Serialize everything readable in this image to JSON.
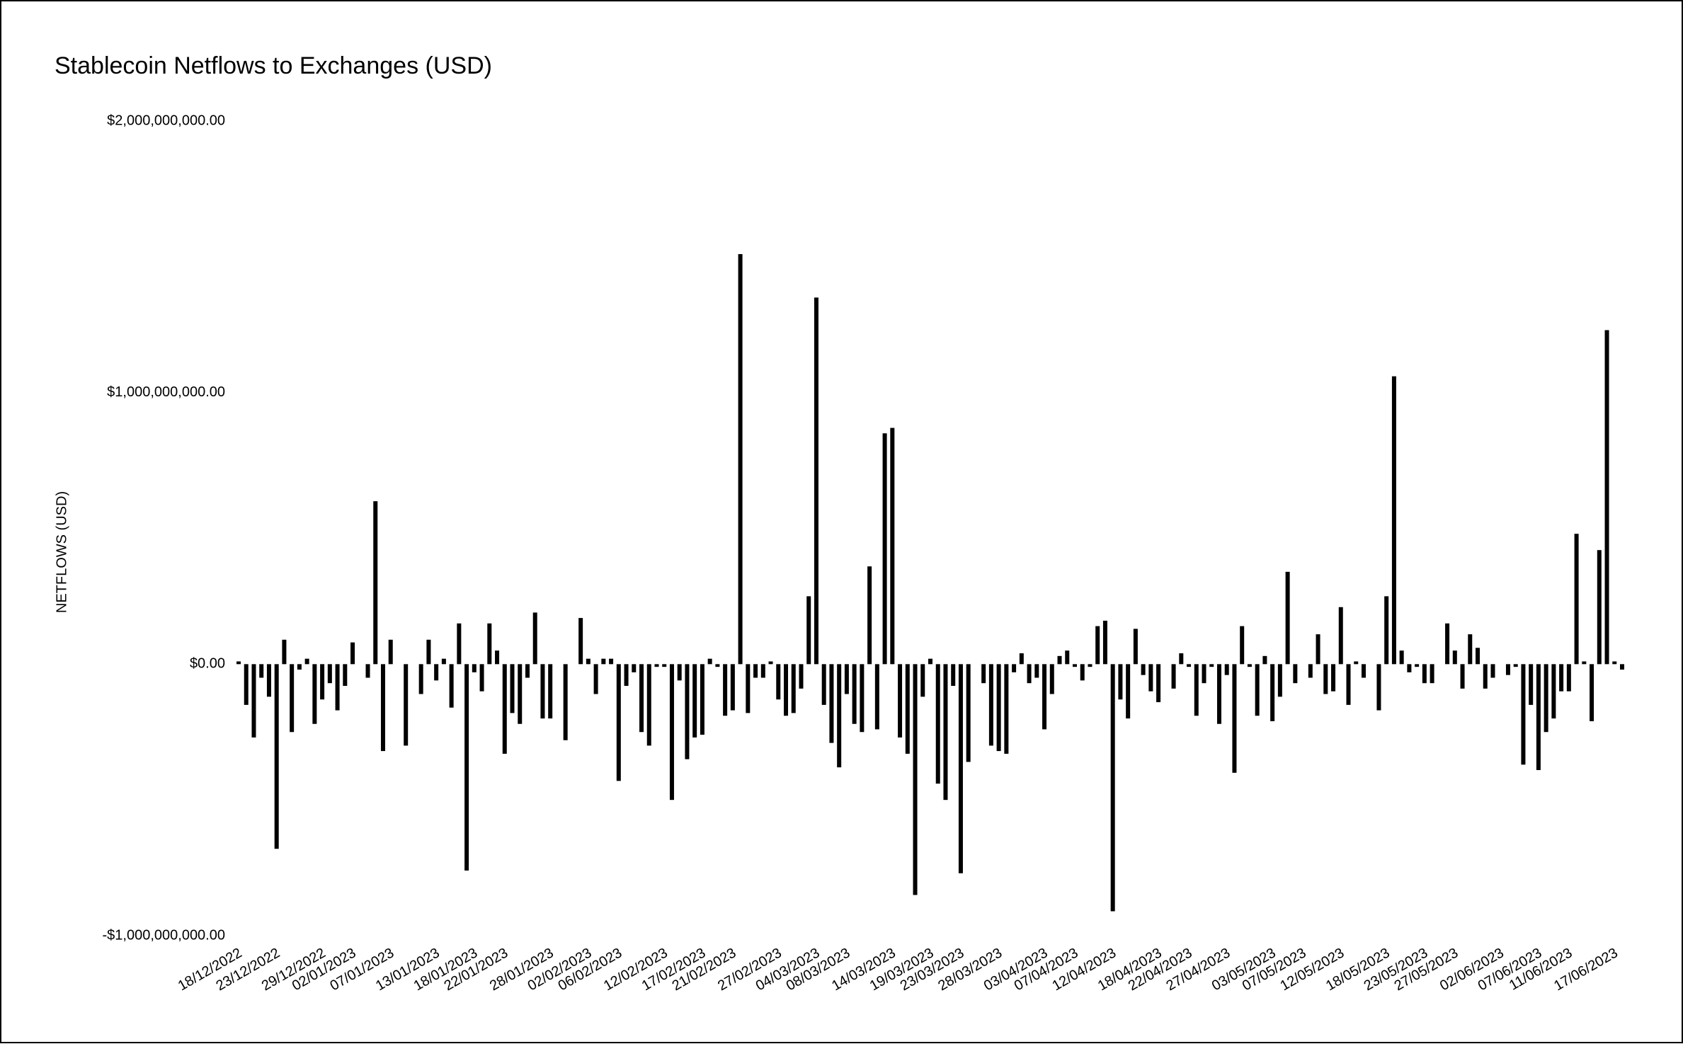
{
  "chart_data": {
    "type": "bar",
    "title": "Stablecoin Netflows to Exchanges (USD)",
    "y_label": "NETFLOWS (USD)",
    "color": "#000000",
    "ylim": [
      -1000000000,
      2000000000
    ],
    "yticks": [
      {
        "value": -1000000000,
        "label": "-$1,000,000,000.00"
      },
      {
        "value": 0,
        "label": "$0.00"
      },
      {
        "value": 1000000000,
        "label": "$1,000,000,000.00"
      },
      {
        "value": 2000000000,
        "label": "$2,000,000,000.00"
      }
    ],
    "categories": [
      "18/12/2022",
      null,
      null,
      null,
      null,
      "23/12/2022",
      null,
      null,
      null,
      null,
      null,
      "29/12/2022",
      null,
      null,
      null,
      "02/01/2023",
      null,
      null,
      null,
      null,
      "07/01/2023",
      null,
      null,
      null,
      null,
      null,
      "13/01/2023",
      null,
      null,
      null,
      null,
      "18/01/2023",
      null,
      null,
      null,
      "22/01/2023",
      null,
      null,
      null,
      null,
      null,
      "28/01/2023",
      null,
      null,
      null,
      null,
      "02/02/2023",
      null,
      null,
      null,
      "06/02/2023",
      null,
      null,
      null,
      null,
      null,
      "12/02/2023",
      null,
      null,
      null,
      null,
      "17/02/2023",
      null,
      null,
      null,
      "21/02/2023",
      null,
      null,
      null,
      null,
      null,
      "27/02/2023",
      null,
      null,
      null,
      null,
      "04/03/2023",
      null,
      null,
      null,
      "08/03/2023",
      null,
      null,
      null,
      null,
      null,
      "14/03/2023",
      null,
      null,
      null,
      null,
      "19/03/2023",
      null,
      null,
      null,
      "23/03/2023",
      null,
      null,
      null,
      null,
      "28/03/2023",
      null,
      null,
      null,
      null,
      null,
      "03/04/2023",
      null,
      null,
      null,
      "07/04/2023",
      null,
      null,
      null,
      null,
      "12/04/2023",
      null,
      null,
      null,
      null,
      null,
      "18/04/2023",
      null,
      null,
      null,
      "22/04/2023",
      null,
      null,
      null,
      null,
      "27/04/2023",
      null,
      null,
      null,
      null,
      null,
      "03/05/2023",
      null,
      null,
      null,
      "07/05/2023",
      null,
      null,
      null,
      null,
      "12/05/2023",
      null,
      null,
      null,
      null,
      null,
      "18/05/2023",
      null,
      null,
      null,
      null,
      "23/05/2023",
      null,
      null,
      null,
      "27/05/2023",
      null,
      null,
      null,
      null,
      null,
      "02/06/2023",
      null,
      null,
      null,
      null,
      "07/06/2023",
      null,
      null,
      null,
      "11/06/2023",
      null,
      null,
      null,
      null,
      null,
      "17/06/2023",
      null
    ],
    "values": [
      10000000,
      -150000000,
      -270000000,
      -50000000,
      -120000000,
      -680000000,
      90000000,
      -250000000,
      -20000000,
      20000000,
      -220000000,
      -130000000,
      -70000000,
      -170000000,
      -80000000,
      80000000,
      0,
      -50000000,
      600000000,
      -320000000,
      90000000,
      0,
      -300000000,
      0,
      -110000000,
      90000000,
      -60000000,
      20000000,
      -160000000,
      150000000,
      -760000000,
      -30000000,
      -100000000,
      150000000,
      50000000,
      -330000000,
      -180000000,
      -220000000,
      -50000000,
      190000000,
      -200000000,
      -200000000,
      0,
      -280000000,
      0,
      170000000,
      20000000,
      -110000000,
      20000000,
      20000000,
      -430000000,
      -80000000,
      -30000000,
      -250000000,
      -300000000,
      -10000000,
      -10000000,
      -500000000,
      -60000000,
      -350000000,
      -270000000,
      -260000000,
      20000000,
      -10000000,
      -190000000,
      -170000000,
      1510000000,
      -180000000,
      -50000000,
      -50000000,
      10000000,
      -130000000,
      -190000000,
      -180000000,
      -90000000,
      250000000,
      1350000000,
      -150000000,
      -290000000,
      -380000000,
      -110000000,
      -220000000,
      -250000000,
      360000000,
      -240000000,
      850000000,
      870000000,
      -270000000,
      -330000000,
      -850000000,
      -120000000,
      20000000,
      -440000000,
      -500000000,
      -80000000,
      -770000000,
      -360000000,
      0,
      -70000000,
      -300000000,
      -320000000,
      -330000000,
      -30000000,
      40000000,
      -70000000,
      -50000000,
      -240000000,
      -110000000,
      30000000,
      50000000,
      -10000000,
      -60000000,
      -10000000,
      140000000,
      160000000,
      -910000000,
      -130000000,
      -200000000,
      130000000,
      -40000000,
      -100000000,
      -140000000,
      0,
      -90000000,
      40000000,
      -10000000,
      -190000000,
      -70000000,
      -10000000,
      -220000000,
      -40000000,
      -400000000,
      140000000,
      -10000000,
      -190000000,
      30000000,
      -210000000,
      -120000000,
      340000000,
      -70000000,
      0,
      -50000000,
      110000000,
      -110000000,
      -100000000,
      210000000,
      -150000000,
      10000000,
      -50000000,
      0,
      -170000000,
      250000000,
      1060000000,
      50000000,
      -30000000,
      -10000000,
      -70000000,
      -70000000,
      0,
      150000000,
      50000000,
      -90000000,
      110000000,
      60000000,
      -90000000,
      -50000000,
      0,
      -40000000,
      -10000000,
      -370000000,
      -150000000,
      -390000000,
      -250000000,
      -200000000,
      -100000000,
      -100000000,
      480000000,
      10000000,
      -210000000,
      420000000,
      1230000000,
      10000000,
      -20000000
    ]
  }
}
